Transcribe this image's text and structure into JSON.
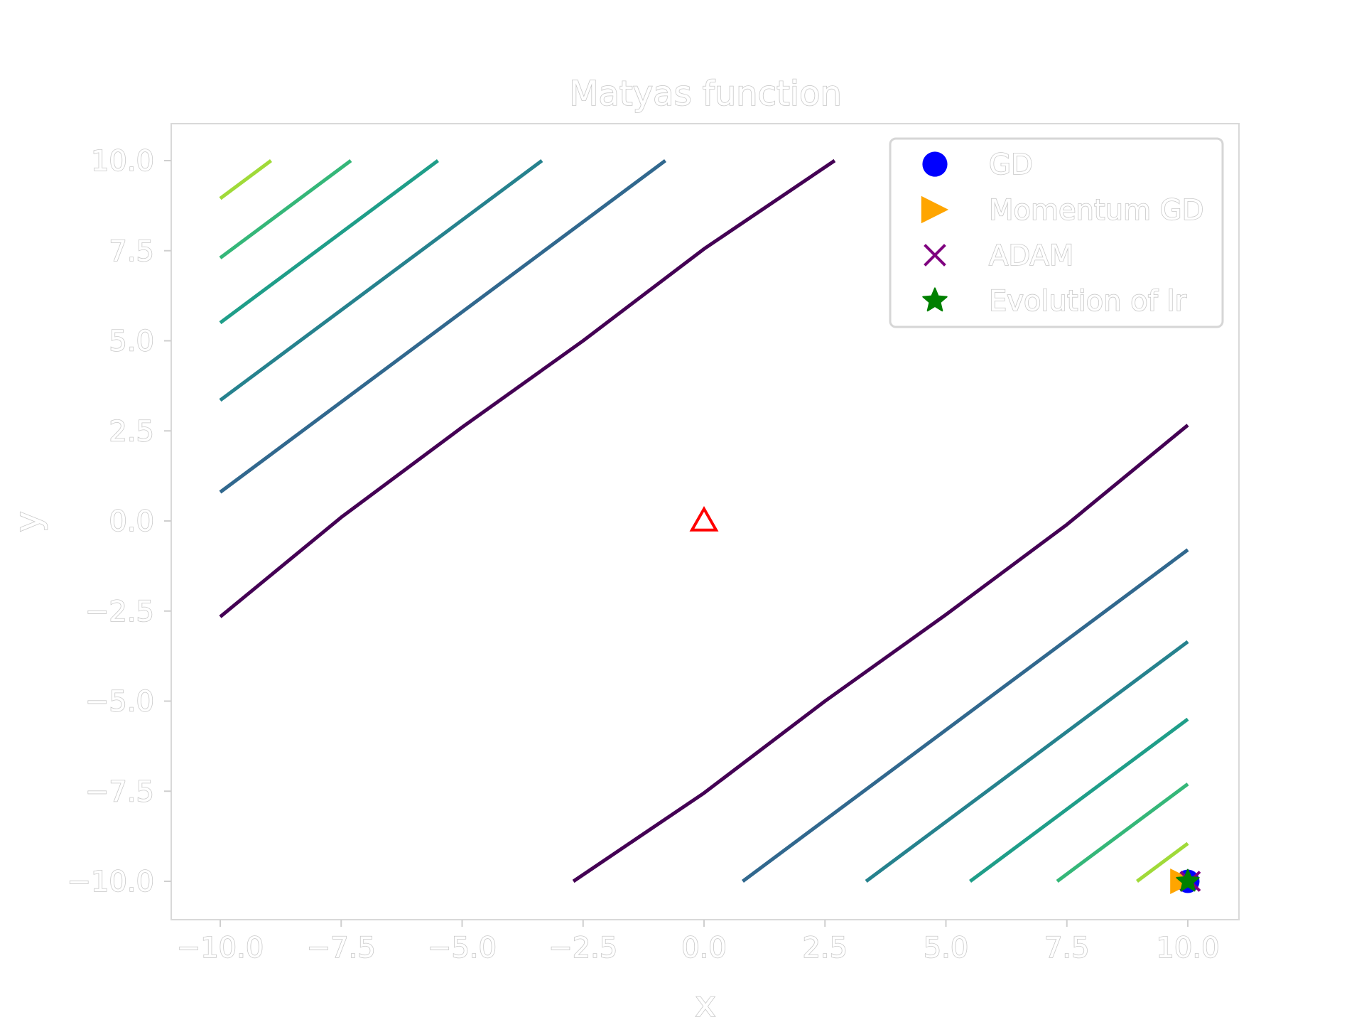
{
  "chart_data": {
    "type": "line",
    "title": "Matyas function",
    "xlabel": "x",
    "ylabel": "y",
    "xlim": [
      -11,
      11
    ],
    "ylim": [
      -11,
      11
    ],
    "xticks": [
      -10.0,
      -7.5,
      -5.0,
      -2.5,
      0.0,
      2.5,
      5.0,
      7.5,
      10.0
    ],
    "yticks": [
      -10.0,
      -7.5,
      -5.0,
      -2.5,
      0.0,
      2.5,
      5.0,
      7.5,
      10.0
    ],
    "xtick_labels": [
      "−10.0",
      "−7.5",
      "−5.0",
      "−2.5",
      "0.0",
      "2.5",
      "5.0",
      "7.5",
      "10.0"
    ],
    "ytick_labels": [
      "−10.0",
      "−7.5",
      "−5.0",
      "−2.5",
      "0.0",
      "2.5",
      "5.0",
      "7.5",
      "10.0"
    ],
    "grid": false,
    "legend_position": "top-right",
    "contours": [
      {
        "color": "#440154",
        "segments": [
          [
            [
              -10,
              -2.66
            ],
            [
              -7.5,
              0.1
            ],
            [
              -5,
              2.6
            ],
            [
              -2.5,
              5.0
            ],
            [
              0,
              7.55
            ],
            [
              2.7,
              10
            ]
          ],
          [
            [
              -2.7,
              -10
            ],
            [
              0,
              -7.55
            ],
            [
              2.5,
              -5.0
            ],
            [
              5,
              -2.6
            ],
            [
              7.5,
              -0.1
            ],
            [
              10,
              2.66
            ]
          ]
        ]
      },
      {
        "color": "#31688e",
        "segments": [
          [
            [
              -10,
              0.8
            ],
            [
              -0.8,
              10
            ]
          ],
          [
            [
              0.8,
              -10
            ],
            [
              10,
              -0.8
            ]
          ]
        ]
      },
      {
        "color": "#26828e",
        "segments": [
          [
            [
              -10,
              3.35
            ],
            [
              -3.35,
              10
            ]
          ],
          [
            [
              3.35,
              -10
            ],
            [
              10,
              -3.35
            ]
          ]
        ]
      },
      {
        "color": "#1f9e89",
        "segments": [
          [
            [
              -10,
              5.5
            ],
            [
              -5.5,
              10
            ]
          ],
          [
            [
              5.5,
              -10
            ],
            [
              10,
              -5.5
            ]
          ]
        ]
      },
      {
        "color": "#35b779",
        "segments": [
          [
            [
              -10,
              7.3
            ],
            [
              -7.3,
              10
            ]
          ],
          [
            [
              7.3,
              -10
            ],
            [
              10,
              -7.3
            ]
          ]
        ]
      },
      {
        "color": "#a0da39",
        "segments": [
          [
            [
              -10,
              8.95
            ],
            [
              -8.95,
              10
            ]
          ],
          [
            [
              8.95,
              -10
            ],
            [
              10,
              -8.95
            ]
          ]
        ]
      }
    ],
    "marker_points": [
      {
        "name": "minimum",
        "x": 0,
        "y": 0,
        "marker": "triangle-open",
        "color": "#ff0000"
      }
    ],
    "series": [
      {
        "name": "GD",
        "marker": "circle",
        "color": "#0000ff",
        "x": [
          10.0
        ],
        "y": [
          -10.0
        ]
      },
      {
        "name": "Momentum GD",
        "marker": "triangle-right",
        "color": "#ffa500",
        "x": [
          9.9
        ],
        "y": [
          -10.0
        ]
      },
      {
        "name": "ADAM",
        "marker": "x",
        "color": "#800080",
        "x": [
          10.05
        ],
        "y": [
          -10.0
        ]
      },
      {
        "name": "Evolution of lr",
        "marker": "star",
        "color": "#008000",
        "x": [
          10.0
        ],
        "y": [
          -10.0
        ]
      }
    ],
    "legend": {
      "entries": [
        {
          "label": "GD",
          "marker": "circle",
          "color": "#0000ff"
        },
        {
          "label": "Momentum GD",
          "marker": "triangle-right",
          "color": "#ffa500"
        },
        {
          "label": "ADAM",
          "marker": "x",
          "color": "#800080"
        },
        {
          "label": "Evolution of lr",
          "marker": "star",
          "color": "#008000"
        }
      ]
    },
    "colors": {
      "text_fill": "#ffffff",
      "text_outline": "#c8c8c8",
      "frame": "#d9d9d9"
    }
  }
}
